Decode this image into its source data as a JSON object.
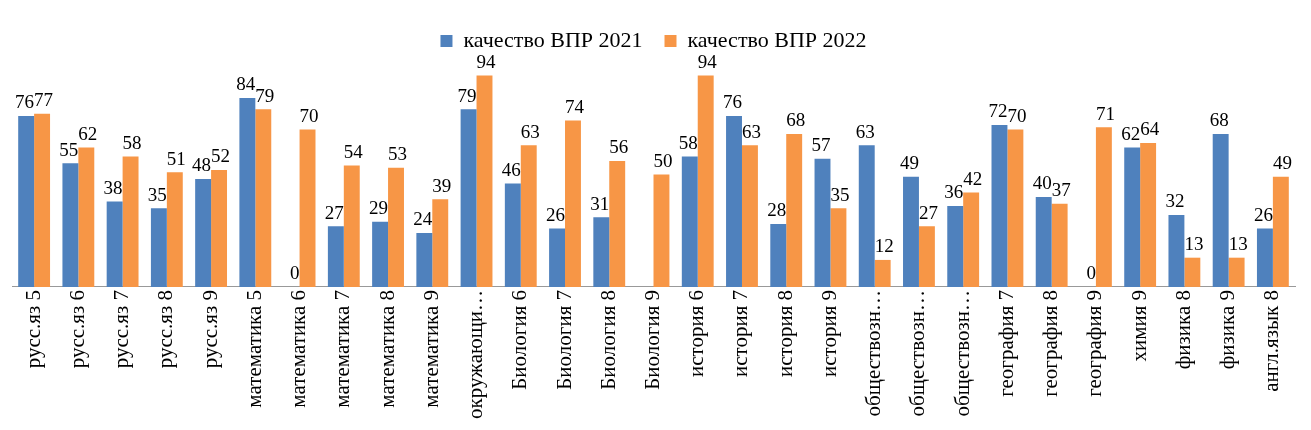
{
  "chart_data": {
    "type": "bar",
    "categories": [
      "русс.яз 5",
      "русс.яз 6",
      "русс.яз 7",
      "русс.яз 8",
      "русс.яз 9",
      "математика 5",
      "математика 6",
      "математика 7",
      "математика 8",
      "математика 9",
      "окружающи…",
      "Биология 6",
      "Биология 7",
      "Биология 8",
      "Биология 9",
      "история 6",
      "история 7",
      "история 8",
      "история 9",
      "обществозн…",
      "обществозн…",
      "обществозн…",
      "география 7",
      "география 8",
      "география 9",
      "химия 9",
      "физика 8",
      "физика 9",
      "англ.язык 8"
    ],
    "series": [
      {
        "name": "качество ВПР 2021",
        "color": "#4f81bd",
        "values": [
          76,
          55,
          38,
          35,
          48,
          84,
          0,
          27,
          29,
          24,
          79,
          46,
          26,
          31,
          null,
          58,
          76,
          28,
          57,
          63,
          49,
          36,
          72,
          40,
          0,
          62,
          32,
          68,
          26
        ]
      },
      {
        "name": "качество ВПР 2022",
        "color": "#f79646",
        "values": [
          77,
          62,
          58,
          51,
          52,
          79,
          70,
          54,
          53,
          39,
          94,
          63,
          74,
          56,
          50,
          94,
          63,
          68,
          35,
          12,
          27,
          42,
          70,
          37,
          71,
          64,
          13,
          13,
          49
        ]
      }
    ],
    "data_labels": true,
    "legend": "top",
    "grid": false,
    "tick_labels": "x"
  }
}
